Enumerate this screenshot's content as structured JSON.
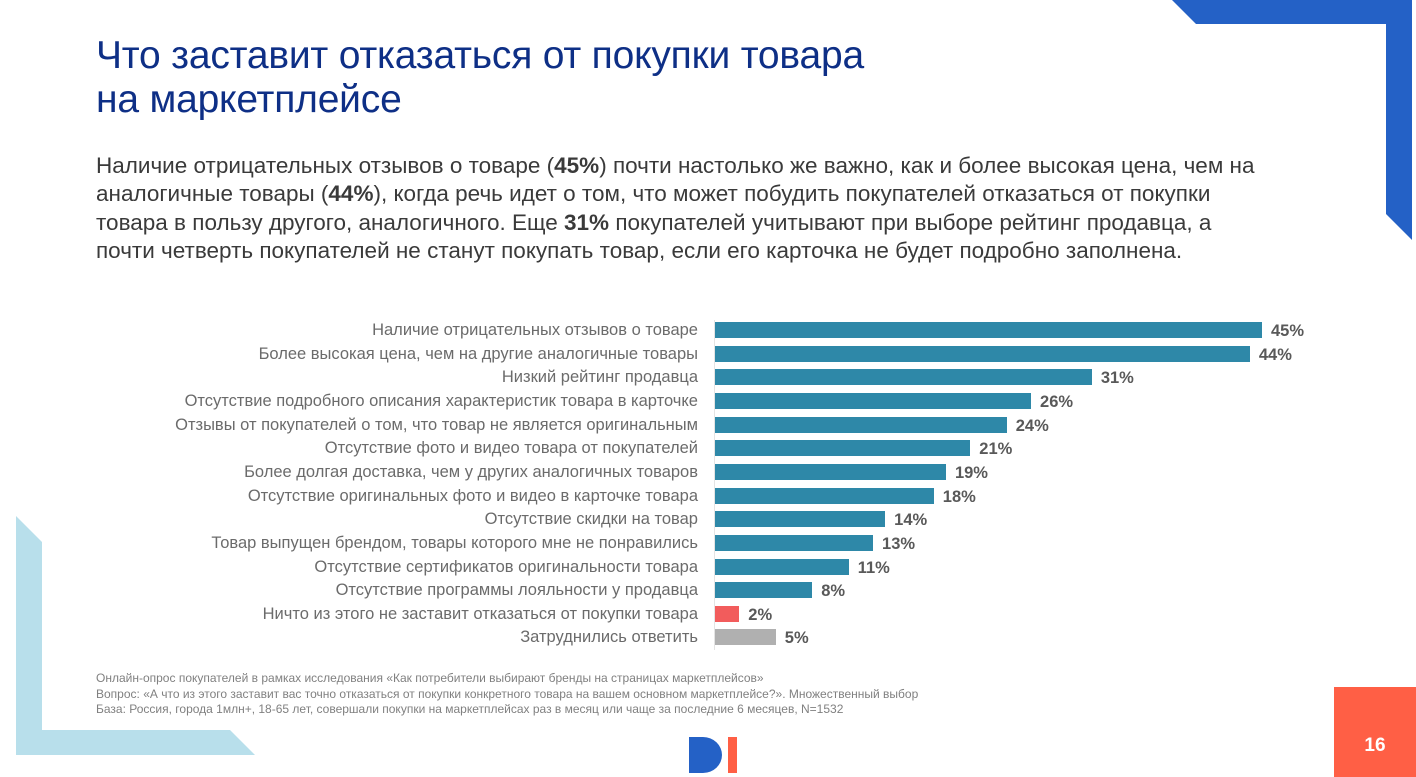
{
  "slide": {
    "title_lines": [
      "Что заставит отказаться от покупки товара",
      "на маркетплейсе"
    ],
    "lead": {
      "parts": [
        {
          "text": "Наличие отрицательных отзывов о товаре (",
          "bold": false
        },
        {
          "text": "45%",
          "bold": true
        },
        {
          "text": ") почти настолько же важно, как и более высокая цена, чем на аналогичные товары (",
          "bold": false
        },
        {
          "text": "44%",
          "bold": true
        },
        {
          "text": "), когда речь идет о том, что может побудить покупателей отказаться от покупки товара в пользу другого, аналогичного. Еще ",
          "bold": false
        },
        {
          "text": "31%",
          "bold": true
        },
        {
          "text": " покупателей учитывают при выборе рейтинг продавца, а почти четверть покупателей не станут покупать товар, если его карточка не будет подробно заполнена.",
          "bold": false
        }
      ]
    },
    "footnotes": [
      "Онлайн-опрос покупателей в рамках исследования «Как потребители выбирают бренды на страницах маркетплейсов»",
      "Вопрос: «А что из этого заставит вас точно отказаться от покупки конкретного товара на вашем основном маркетплейсе?». Множественный выбор",
      "База: Россия, города 1млн+, 18-65 лет, совершали покупки на маркетплейсах раз в месяц или чаще за последние 6 месяцев, N=1532"
    ],
    "page_number": "16",
    "logo": "DI-logo-icon"
  },
  "colors": {
    "title": "#0e2f86",
    "bar_main": "#2e88a8",
    "bar_none": "#f25c5c",
    "bar_unsure": "#b0b0b0",
    "accent_blue": "#2461c6",
    "accent_light": "#b8dfeb",
    "accent_red": "#ff5f45"
  },
  "chart_data": {
    "type": "bar",
    "orientation": "horizontal",
    "title": "",
    "xlabel": "",
    "ylabel": "",
    "xlim": [
      0,
      45
    ],
    "grid": false,
    "value_suffix": "%",
    "categories": [
      "Наличие отрицательных отзывов о товаре",
      "Более высокая цена, чем на другие аналогичные товары",
      "Низкий рейтинг продавца",
      "Отсутствие подробного описания характеристик товара в карточке",
      "Отзывы от покупателей о том, что товар не является оригинальным",
      "Отсутствие фото и видео товара от покупателей",
      "Более долгая доставка, чем у других аналогичных товаров",
      "Отсутствие оригинальных фото и видео в карточке товара",
      "Отсутствие скидки на товар",
      "Товар выпущен брендом, товары которого мне не понравились",
      "Отсутствие сертификатов оригинальности товара",
      "Отсутствие программы лояльности у продавца",
      "Ничто из этого не заставит отказаться от покупки товара",
      "Затруднились ответить"
    ],
    "values": [
      45,
      44,
      31,
      26,
      24,
      21,
      19,
      18,
      14,
      13,
      11,
      8,
      2,
      5
    ],
    "value_labels": [
      "45%",
      "44%",
      "31%",
      "26%",
      "24%",
      "21%",
      "19%",
      "18%",
      "14%",
      "13%",
      "11%",
      "8%",
      "2%",
      "5%"
    ],
    "bar_kinds": [
      "main",
      "main",
      "main",
      "main",
      "main",
      "main",
      "main",
      "main",
      "main",
      "main",
      "main",
      "main",
      "none",
      "unsure"
    ]
  }
}
